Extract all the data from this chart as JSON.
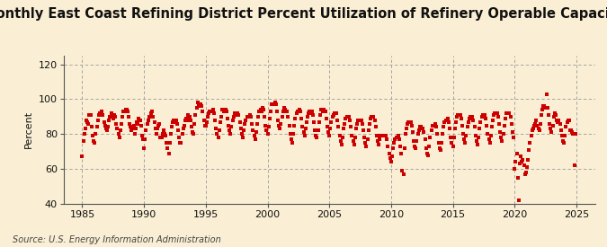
{
  "title": "Monthly East Coast Refining District Percent Utilization of Refinery Operable Capacity",
  "ylabel": "Percent",
  "source": "Source: U.S. Energy Information Administration",
  "xlim": [
    1983.5,
    2026.5
  ],
  "ylim": [
    40,
    125
  ],
  "yticks": [
    40,
    60,
    80,
    100,
    120
  ],
  "xticks": [
    1985,
    1990,
    1995,
    2000,
    2005,
    2010,
    2015,
    2020,
    2025
  ],
  "dot_color": "#cc0000",
  "bg_color": "#faefd4",
  "grid_color": "#999999",
  "title_fontsize": 10.5,
  "label_fontsize": 8,
  "source_fontsize": 7,
  "marker_size": 9,
  "data": [
    [
      1985.0,
      67.0
    ],
    [
      1985.083,
      76.0
    ],
    [
      1985.167,
      80.0
    ],
    [
      1985.25,
      83.0
    ],
    [
      1985.333,
      88.0
    ],
    [
      1985.417,
      87.0
    ],
    [
      1985.5,
      86.0
    ],
    [
      1985.583,
      91.0
    ],
    [
      1985.667,
      91.0
    ],
    [
      1985.75,
      84.0
    ],
    [
      1985.833,
      79.0
    ],
    [
      1985.917,
      76.0
    ],
    [
      1986.0,
      75.0
    ],
    [
      1986.083,
      80.0
    ],
    [
      1986.167,
      84.0
    ],
    [
      1986.25,
      88.0
    ],
    [
      1986.333,
      91.0
    ],
    [
      1986.417,
      92.0
    ],
    [
      1986.5,
      92.0
    ],
    [
      1986.583,
      93.0
    ],
    [
      1986.667,
      91.0
    ],
    [
      1986.75,
      87.0
    ],
    [
      1986.833,
      85.0
    ],
    [
      1986.917,
      83.0
    ],
    [
      1987.0,
      82.0
    ],
    [
      1987.083,
      84.0
    ],
    [
      1987.167,
      88.0
    ],
    [
      1987.25,
      90.0
    ],
    [
      1987.333,
      92.0
    ],
    [
      1987.417,
      90.0
    ],
    [
      1987.5,
      89.0
    ],
    [
      1987.583,
      91.0
    ],
    [
      1987.667,
      90.0
    ],
    [
      1987.75,
      86.0
    ],
    [
      1987.833,
      83.0
    ],
    [
      1987.917,
      80.0
    ],
    [
      1988.0,
      78.0
    ],
    [
      1988.083,
      82.0
    ],
    [
      1988.167,
      86.0
    ],
    [
      1988.25,
      90.0
    ],
    [
      1988.333,
      93.0
    ],
    [
      1988.417,
      93.0
    ],
    [
      1988.5,
      94.0
    ],
    [
      1988.583,
      94.0
    ],
    [
      1988.667,
      93.0
    ],
    [
      1988.75,
      90.0
    ],
    [
      1988.833,
      86.0
    ],
    [
      1988.917,
      84.0
    ],
    [
      1989.0,
      82.0
    ],
    [
      1989.083,
      83.0
    ],
    [
      1989.167,
      85.0
    ],
    [
      1989.25,
      80.0
    ],
    [
      1989.333,
      83.0
    ],
    [
      1989.417,
      87.0
    ],
    [
      1989.5,
      86.0
    ],
    [
      1989.583,
      89.0
    ],
    [
      1989.667,
      88.0
    ],
    [
      1989.75,
      85.0
    ],
    [
      1989.833,
      79.0
    ],
    [
      1989.917,
      77.0
    ],
    [
      1990.0,
      72.0
    ],
    [
      1990.083,
      77.0
    ],
    [
      1990.167,
      82.0
    ],
    [
      1990.25,
      86.0
    ],
    [
      1990.333,
      88.0
    ],
    [
      1990.417,
      90.0
    ],
    [
      1990.5,
      90.0
    ],
    [
      1990.583,
      92.0
    ],
    [
      1990.667,
      93.0
    ],
    [
      1990.75,
      90.0
    ],
    [
      1990.833,
      87.0
    ],
    [
      1990.917,
      83.0
    ],
    [
      1991.0,
      80.0
    ],
    [
      1991.083,
      83.0
    ],
    [
      1991.167,
      85.0
    ],
    [
      1991.25,
      86.0
    ],
    [
      1991.333,
      78.0
    ],
    [
      1991.417,
      78.0
    ],
    [
      1991.5,
      80.0
    ],
    [
      1991.583,
      82.0
    ],
    [
      1991.667,
      80.0
    ],
    [
      1991.75,
      79.0
    ],
    [
      1991.833,
      75.0
    ],
    [
      1991.917,
      72.0
    ],
    [
      1992.0,
      69.0
    ],
    [
      1992.083,
      75.0
    ],
    [
      1992.167,
      80.0
    ],
    [
      1992.25,
      84.0
    ],
    [
      1992.333,
      87.0
    ],
    [
      1992.417,
      88.0
    ],
    [
      1992.5,
      87.0
    ],
    [
      1992.583,
      88.0
    ],
    [
      1992.667,
      86.0
    ],
    [
      1992.75,
      82.0
    ],
    [
      1992.833,
      78.0
    ],
    [
      1992.917,
      75.0
    ],
    [
      1993.0,
      75.0
    ],
    [
      1993.083,
      80.0
    ],
    [
      1993.167,
      83.0
    ],
    [
      1993.25,
      85.0
    ],
    [
      1993.333,
      88.0
    ],
    [
      1993.417,
      89.0
    ],
    [
      1993.5,
      88.0
    ],
    [
      1993.583,
      91.0
    ],
    [
      1993.667,
      90.0
    ],
    [
      1993.75,
      88.0
    ],
    [
      1993.833,
      84.0
    ],
    [
      1993.917,
      81.0
    ],
    [
      1994.0,
      80.0
    ],
    [
      1994.083,
      86.0
    ],
    [
      1994.167,
      91.0
    ],
    [
      1994.25,
      95.0
    ],
    [
      1994.333,
      98.0
    ],
    [
      1994.417,
      97.0
    ],
    [
      1994.5,
      96.0
    ],
    [
      1994.583,
      97.0
    ],
    [
      1994.667,
      96.0
    ],
    [
      1994.75,
      93.0
    ],
    [
      1994.833,
      88.0
    ],
    [
      1994.917,
      85.0
    ],
    [
      1995.0,
      85.0
    ],
    [
      1995.083,
      87.0
    ],
    [
      1995.167,
      90.0
    ],
    [
      1995.25,
      92.0
    ],
    [
      1995.333,
      93.0
    ],
    [
      1995.417,
      93.0
    ],
    [
      1995.5,
      93.0
    ],
    [
      1995.583,
      94.0
    ],
    [
      1995.667,
      92.0
    ],
    [
      1995.75,
      88.0
    ],
    [
      1995.833,
      83.0
    ],
    [
      1995.917,
      80.0
    ],
    [
      1996.0,
      78.0
    ],
    [
      1996.083,
      82.0
    ],
    [
      1996.167,
      87.0
    ],
    [
      1996.25,
      90.0
    ],
    [
      1996.333,
      94.0
    ],
    [
      1996.417,
      94.0
    ],
    [
      1996.5,
      93.0
    ],
    [
      1996.583,
      94.0
    ],
    [
      1996.667,
      93.0
    ],
    [
      1996.75,
      89.0
    ],
    [
      1996.833,
      85.0
    ],
    [
      1996.917,
      82.0
    ],
    [
      1997.0,
      80.0
    ],
    [
      1997.083,
      84.0
    ],
    [
      1997.167,
      88.0
    ],
    [
      1997.25,
      90.0
    ],
    [
      1997.333,
      92.0
    ],
    [
      1997.417,
      92.0
    ],
    [
      1997.5,
      91.0
    ],
    [
      1997.583,
      92.0
    ],
    [
      1997.667,
      91.0
    ],
    [
      1997.75,
      87.0
    ],
    [
      1997.833,
      83.0
    ],
    [
      1997.917,
      80.0
    ],
    [
      1998.0,
      78.0
    ],
    [
      1998.083,
      82.0
    ],
    [
      1998.167,
      86.0
    ],
    [
      1998.25,
      88.0
    ],
    [
      1998.333,
      90.0
    ],
    [
      1998.417,
      90.0
    ],
    [
      1998.5,
      90.0
    ],
    [
      1998.583,
      91.0
    ],
    [
      1998.667,
      90.0
    ],
    [
      1998.75,
      86.0
    ],
    [
      1998.833,
      82.0
    ],
    [
      1998.917,
      79.0
    ],
    [
      1999.0,
      77.0
    ],
    [
      1999.083,
      81.0
    ],
    [
      1999.167,
      86.0
    ],
    [
      1999.25,
      90.0
    ],
    [
      1999.333,
      93.0
    ],
    [
      1999.417,
      94.0
    ],
    [
      1999.5,
      93.0
    ],
    [
      1999.583,
      95.0
    ],
    [
      1999.667,
      94.0
    ],
    [
      1999.75,
      90.0
    ],
    [
      1999.833,
      85.0
    ],
    [
      1999.917,
      82.0
    ],
    [
      2000.0,
      80.0
    ],
    [
      2000.083,
      84.0
    ],
    [
      2000.167,
      89.0
    ],
    [
      2000.25,
      93.0
    ],
    [
      2000.333,
      97.0
    ],
    [
      2000.417,
      97.0
    ],
    [
      2000.5,
      97.0
    ],
    [
      2000.583,
      98.0
    ],
    [
      2000.667,
      97.0
    ],
    [
      2000.75,
      93.0
    ],
    [
      2000.833,
      88.0
    ],
    [
      2000.917,
      85.0
    ],
    [
      2001.0,
      83.0
    ],
    [
      2001.083,
      86.0
    ],
    [
      2001.167,
      90.0
    ],
    [
      2001.25,
      93.0
    ],
    [
      2001.333,
      95.0
    ],
    [
      2001.417,
      94.0
    ],
    [
      2001.5,
      93.0
    ],
    [
      2001.583,
      93.0
    ],
    [
      2001.667,
      90.0
    ],
    [
      2001.75,
      85.0
    ],
    [
      2001.833,
      80.0
    ],
    [
      2001.917,
      77.0
    ],
    [
      2002.0,
      75.0
    ],
    [
      2002.083,
      80.0
    ],
    [
      2002.167,
      85.0
    ],
    [
      2002.25,
      89.0
    ],
    [
      2002.333,
      92.0
    ],
    [
      2002.417,
      93.0
    ],
    [
      2002.5,
      93.0
    ],
    [
      2002.583,
      94.0
    ],
    [
      2002.667,
      93.0
    ],
    [
      2002.75,
      89.0
    ],
    [
      2002.833,
      84.0
    ],
    [
      2002.917,
      81.0
    ],
    [
      2003.0,
      79.0
    ],
    [
      2003.083,
      83.0
    ],
    [
      2003.167,
      87.0
    ],
    [
      2003.25,
      90.0
    ],
    [
      2003.333,
      92.0
    ],
    [
      2003.417,
      93.0
    ],
    [
      2003.5,
      92.0
    ],
    [
      2003.583,
      93.0
    ],
    [
      2003.667,
      91.0
    ],
    [
      2003.75,
      87.0
    ],
    [
      2003.833,
      82.0
    ],
    [
      2003.917,
      79.0
    ],
    [
      2004.0,
      78.0
    ],
    [
      2004.083,
      82.0
    ],
    [
      2004.167,
      87.0
    ],
    [
      2004.25,
      91.0
    ],
    [
      2004.333,
      94.0
    ],
    [
      2004.417,
      94.0
    ],
    [
      2004.5,
      93.0
    ],
    [
      2004.583,
      94.0
    ],
    [
      2004.667,
      93.0
    ],
    [
      2004.75,
      89.0
    ],
    [
      2004.833,
      84.0
    ],
    [
      2004.917,
      81.0
    ],
    [
      2005.0,
      79.0
    ],
    [
      2005.083,
      83.0
    ],
    [
      2005.167,
      87.0
    ],
    [
      2005.25,
      90.0
    ],
    [
      2005.333,
      91.0
    ],
    [
      2005.417,
      92.0
    ],
    [
      2005.5,
      92.0
    ],
    [
      2005.583,
      92.0
    ],
    [
      2005.667,
      88.0
    ],
    [
      2005.75,
      84.0
    ],
    [
      2005.833,
      79.0
    ],
    [
      2005.917,
      76.0
    ],
    [
      2006.0,
      74.0
    ],
    [
      2006.083,
      78.0
    ],
    [
      2006.167,
      83.0
    ],
    [
      2006.25,
      86.0
    ],
    [
      2006.333,
      89.0
    ],
    [
      2006.417,
      90.0
    ],
    [
      2006.5,
      90.0
    ],
    [
      2006.583,
      90.0
    ],
    [
      2006.667,
      88.0
    ],
    [
      2006.75,
      84.0
    ],
    [
      2006.833,
      79.0
    ],
    [
      2006.917,
      76.0
    ],
    [
      2007.0,
      74.0
    ],
    [
      2007.083,
      78.0
    ],
    [
      2007.167,
      83.0
    ],
    [
      2007.25,
      86.0
    ],
    [
      2007.333,
      88.0
    ],
    [
      2007.417,
      88.0
    ],
    [
      2007.5,
      88.0
    ],
    [
      2007.583,
      88.0
    ],
    [
      2007.667,
      86.0
    ],
    [
      2007.75,
      82.0
    ],
    [
      2007.833,
      78.0
    ],
    [
      2007.917,
      75.0
    ],
    [
      2008.0,
      73.0
    ],
    [
      2008.083,
      77.0
    ],
    [
      2008.167,
      82.0
    ],
    [
      2008.25,
      86.0
    ],
    [
      2008.333,
      89.0
    ],
    [
      2008.417,
      90.0
    ],
    [
      2008.5,
      90.0
    ],
    [
      2008.583,
      90.0
    ],
    [
      2008.667,
      88.0
    ],
    [
      2008.75,
      84.0
    ],
    [
      2008.833,
      79.0
    ],
    [
      2008.917,
      76.0
    ],
    [
      2009.0,
      74.0
    ],
    [
      2009.083,
      77.0
    ],
    [
      2009.167,
      79.0
    ],
    [
      2009.25,
      79.0
    ],
    [
      2009.333,
      79.0
    ],
    [
      2009.417,
      79.0
    ],
    [
      2009.5,
      79.0
    ],
    [
      2009.583,
      79.0
    ],
    [
      2009.667,
      77.0
    ],
    [
      2009.75,
      73.0
    ],
    [
      2009.833,
      69.0
    ],
    [
      2009.917,
      66.0
    ],
    [
      2010.0,
      64.0
    ],
    [
      2010.083,
      67.0
    ],
    [
      2010.167,
      72.0
    ],
    [
      2010.25,
      75.0
    ],
    [
      2010.333,
      77.0
    ],
    [
      2010.417,
      78.0
    ],
    [
      2010.5,
      78.0
    ],
    [
      2010.583,
      79.0
    ],
    [
      2010.667,
      77.0
    ],
    [
      2010.75,
      73.0
    ],
    [
      2010.833,
      69.0
    ],
    [
      2010.917,
      59.0
    ],
    [
      2011.0,
      57.0
    ],
    [
      2011.083,
      72.0
    ],
    [
      2011.167,
      80.0
    ],
    [
      2011.25,
      83.0
    ],
    [
      2011.333,
      86.0
    ],
    [
      2011.417,
      87.0
    ],
    [
      2011.5,
      87.0
    ],
    [
      2011.583,
      87.0
    ],
    [
      2011.667,
      85.0
    ],
    [
      2011.75,
      81.0
    ],
    [
      2011.833,
      76.0
    ],
    [
      2011.917,
      73.0
    ],
    [
      2012.0,
      72.0
    ],
    [
      2012.083,
      76.0
    ],
    [
      2012.167,
      80.0
    ],
    [
      2012.25,
      82.0
    ],
    [
      2012.333,
      84.0
    ],
    [
      2012.417,
      84.0
    ],
    [
      2012.5,
      83.0
    ],
    [
      2012.583,
      83.0
    ],
    [
      2012.667,
      81.0
    ],
    [
      2012.75,
      77.0
    ],
    [
      2012.833,
      72.0
    ],
    [
      2012.917,
      69.0
    ],
    [
      2013.0,
      68.0
    ],
    [
      2013.083,
      73.0
    ],
    [
      2013.167,
      78.0
    ],
    [
      2013.25,
      82.0
    ],
    [
      2013.333,
      85.0
    ],
    [
      2013.417,
      85.0
    ],
    [
      2013.5,
      85.0
    ],
    [
      2013.583,
      86.0
    ],
    [
      2013.667,
      84.0
    ],
    [
      2013.75,
      80.0
    ],
    [
      2013.833,
      75.0
    ],
    [
      2013.917,
      72.0
    ],
    [
      2014.0,
      71.0
    ],
    [
      2014.083,
      75.0
    ],
    [
      2014.167,
      80.0
    ],
    [
      2014.25,
      84.0
    ],
    [
      2014.333,
      87.0
    ],
    [
      2014.417,
      88.0
    ],
    [
      2014.5,
      88.0
    ],
    [
      2014.583,
      89.0
    ],
    [
      2014.667,
      87.0
    ],
    [
      2014.75,
      83.0
    ],
    [
      2014.833,
      78.0
    ],
    [
      2014.917,
      75.0
    ],
    [
      2015.0,
      73.0
    ],
    [
      2015.083,
      78.0
    ],
    [
      2015.167,
      83.0
    ],
    [
      2015.25,
      87.0
    ],
    [
      2015.333,
      90.0
    ],
    [
      2015.417,
      91.0
    ],
    [
      2015.5,
      91.0
    ],
    [
      2015.583,
      91.0
    ],
    [
      2015.667,
      89.0
    ],
    [
      2015.75,
      85.0
    ],
    [
      2015.833,
      80.0
    ],
    [
      2015.917,
      77.0
    ],
    [
      2016.0,
      75.0
    ],
    [
      2016.083,
      79.0
    ],
    [
      2016.167,
      84.0
    ],
    [
      2016.25,
      87.0
    ],
    [
      2016.333,
      89.0
    ],
    [
      2016.417,
      90.0
    ],
    [
      2016.5,
      90.0
    ],
    [
      2016.583,
      90.0
    ],
    [
      2016.667,
      88.0
    ],
    [
      2016.75,
      84.0
    ],
    [
      2016.833,
      79.0
    ],
    [
      2016.917,
      76.0
    ],
    [
      2017.0,
      74.0
    ],
    [
      2017.083,
      78.0
    ],
    [
      2017.167,
      83.0
    ],
    [
      2017.25,
      87.0
    ],
    [
      2017.333,
      90.0
    ],
    [
      2017.417,
      91.0
    ],
    [
      2017.5,
      91.0
    ],
    [
      2017.583,
      91.0
    ],
    [
      2017.667,
      89.0
    ],
    [
      2017.75,
      85.0
    ],
    [
      2017.833,
      80.0
    ],
    [
      2017.917,
      77.0
    ],
    [
      2018.0,
      75.0
    ],
    [
      2018.083,
      79.0
    ],
    [
      2018.167,
      84.0
    ],
    [
      2018.25,
      88.0
    ],
    [
      2018.333,
      91.0
    ],
    [
      2018.417,
      92.0
    ],
    [
      2018.5,
      92.0
    ],
    [
      2018.583,
      92.0
    ],
    [
      2018.667,
      90.0
    ],
    [
      2018.75,
      86.0
    ],
    [
      2018.833,
      81.0
    ],
    [
      2018.917,
      78.0
    ],
    [
      2019.0,
      76.0
    ],
    [
      2019.083,
      80.0
    ],
    [
      2019.167,
      85.0
    ],
    [
      2019.25,
      89.0
    ],
    [
      2019.333,
      92.0
    ],
    [
      2019.417,
      92.0
    ],
    [
      2019.5,
      92.0
    ],
    [
      2019.583,
      92.0
    ],
    [
      2019.667,
      90.0
    ],
    [
      2019.75,
      86.0
    ],
    [
      2019.833,
      81.0
    ],
    [
      2019.917,
      78.0
    ],
    [
      2020.0,
      60.0
    ],
    [
      2020.083,
      64.0
    ],
    [
      2020.167,
      69.0
    ],
    [
      2020.25,
      55.0
    ],
    [
      2020.333,
      42.0
    ],
    [
      2020.417,
      63.0
    ],
    [
      2020.5,
      67.0
    ],
    [
      2020.583,
      64.0
    ],
    [
      2020.667,
      65.0
    ],
    [
      2020.75,
      62.0
    ],
    [
      2020.833,
      57.0
    ],
    [
      2020.917,
      58.0
    ],
    [
      2021.0,
      61.0
    ],
    [
      2021.083,
      65.0
    ],
    [
      2021.167,
      71.0
    ],
    [
      2021.25,
      75.0
    ],
    [
      2021.333,
      79.0
    ],
    [
      2021.417,
      82.0
    ],
    [
      2021.5,
      83.0
    ],
    [
      2021.583,
      85.0
    ],
    [
      2021.667,
      86.0
    ],
    [
      2021.75,
      88.0
    ],
    [
      2021.833,
      85.0
    ],
    [
      2021.917,
      83.0
    ],
    [
      2022.0,
      82.0
    ],
    [
      2022.083,
      86.0
    ],
    [
      2022.167,
      91.0
    ],
    [
      2022.25,
      94.0
    ],
    [
      2022.333,
      96.0
    ],
    [
      2022.417,
      96.0
    ],
    [
      2022.5,
      95.0
    ],
    [
      2022.583,
      103.0
    ],
    [
      2022.667,
      95.0
    ],
    [
      2022.75,
      91.0
    ],
    [
      2022.833,
      86.0
    ],
    [
      2022.917,
      83.0
    ],
    [
      2023.0,
      81.0
    ],
    [
      2023.083,
      85.0
    ],
    [
      2023.167,
      90.0
    ],
    [
      2023.25,
      92.0
    ],
    [
      2023.333,
      91.0
    ],
    [
      2023.417,
      88.0
    ],
    [
      2023.5,
      87.0
    ],
    [
      2023.583,
      88.0
    ],
    [
      2023.667,
      86.0
    ],
    [
      2023.75,
      82.0
    ],
    [
      2023.833,
      79.0
    ],
    [
      2023.917,
      76.0
    ],
    [
      2024.0,
      75.0
    ],
    [
      2024.083,
      79.0
    ],
    [
      2024.167,
      84.0
    ],
    [
      2024.25,
      87.0
    ],
    [
      2024.333,
      88.0
    ],
    [
      2024.417,
      88.0
    ],
    [
      2024.5,
      82.0
    ],
    [
      2024.583,
      82.0
    ],
    [
      2024.667,
      81.0
    ],
    [
      2024.75,
      80.0
    ],
    [
      2024.833,
      62.0
    ],
    [
      2024.917,
      80.0
    ]
  ]
}
